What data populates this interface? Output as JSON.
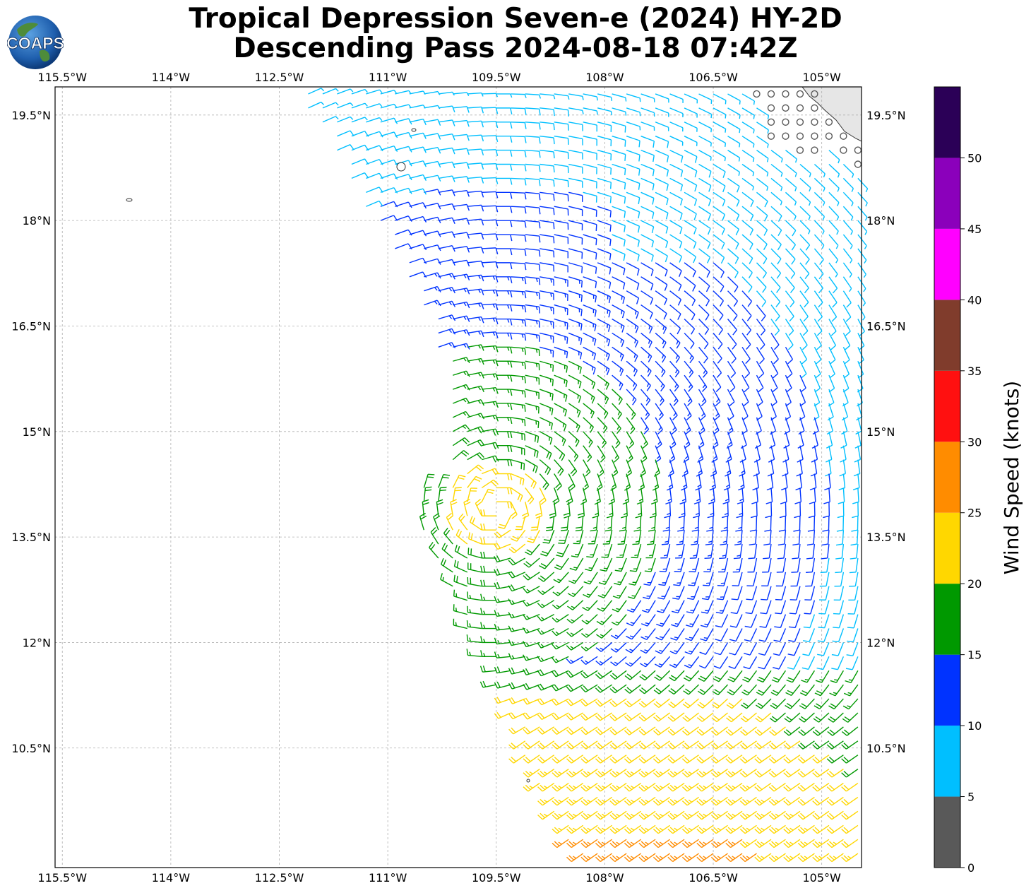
{
  "title": {
    "line1": "Tropical Depression Seven-e (2024) HY-2D",
    "line2": "Descending Pass 2024-08-18 07:42Z"
  },
  "logo": {
    "text": "COAPS"
  },
  "map": {
    "lon_range": [
      -115.6,
      -104.45
    ],
    "lat_range": [
      8.8,
      19.9
    ],
    "lon_ticks": [
      {
        "value": -115.5,
        "label": "115.5°W"
      },
      {
        "value": -114.0,
        "label": "114°W"
      },
      {
        "value": -112.5,
        "label": "112.5°W"
      },
      {
        "value": -111.0,
        "label": "111°W"
      },
      {
        "value": -109.5,
        "label": "109.5°W"
      },
      {
        "value": -108.0,
        "label": "108°W"
      },
      {
        "value": -106.5,
        "label": "106.5°W"
      },
      {
        "value": -105.0,
        "label": "105°W"
      }
    ],
    "lat_ticks": [
      {
        "value": 19.5,
        "label": "19.5°N"
      },
      {
        "value": 18.0,
        "label": "18°N"
      },
      {
        "value": 16.5,
        "label": "16.5°N"
      },
      {
        "value": 15.0,
        "label": "15°N"
      },
      {
        "value": 13.5,
        "label": "13.5°N"
      },
      {
        "value": 12.0,
        "label": "12°N"
      },
      {
        "value": 10.5,
        "label": "10.5°N"
      }
    ],
    "gridlines": true,
    "circulation_center": {
      "lon": -109.5,
      "lat": 13.9
    }
  },
  "colorbar": {
    "label": "Wind Speed (knots)",
    "ticks": [
      "0",
      "5",
      "10",
      "15",
      "20",
      "25",
      "30",
      "35",
      "40",
      "45",
      "50"
    ],
    "bins": [
      {
        "min": 0,
        "max": 5,
        "color": "#595959"
      },
      {
        "min": 5,
        "max": 10,
        "color": "#00bfff"
      },
      {
        "min": 10,
        "max": 15,
        "color": "#0033ff"
      },
      {
        "min": 15,
        "max": 20,
        "color": "#009900"
      },
      {
        "min": 20,
        "max": 25,
        "color": "#ffd700"
      },
      {
        "min": 25,
        "max": 30,
        "color": "#ff8c00"
      },
      {
        "min": 30,
        "max": 35,
        "color": "#ff1010"
      },
      {
        "min": 35,
        "max": 40,
        "color": "#803c2c"
      },
      {
        "min": 40,
        "max": 45,
        "color": "#ff00ff"
      },
      {
        "min": 45,
        "max": 50,
        "color": "#8b00bb"
      },
      {
        "min": 50,
        "max": 55,
        "color": "#2b0057"
      }
    ]
  },
  "colors": {
    "land": "#e6e6e6",
    "coastline": "#333333",
    "grid": "#b0b0b0"
  }
}
